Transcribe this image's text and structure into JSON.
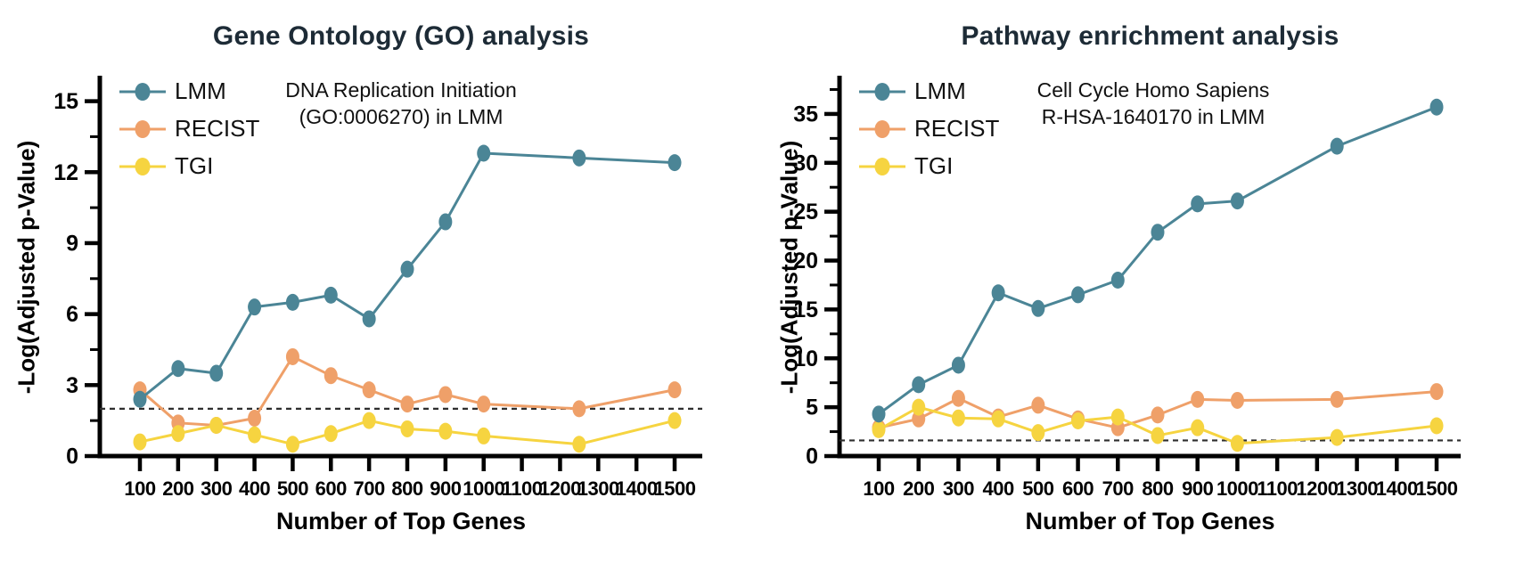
{
  "chart_data": [
    {
      "type": "line",
      "title": "Gene Ontology (GO) analysis",
      "annotation": {
        "line1": "DNA Replication Initiation",
        "line2": "(GO:0006270) in LMM"
      },
      "xlabel": "Number of Top Genes",
      "ylabel": "-Log(Adjusted p-Value)",
      "x": [
        100,
        200,
        300,
        400,
        500,
        600,
        700,
        800,
        900,
        1000,
        1250,
        1500
      ],
      "xticks": [
        100,
        200,
        300,
        400,
        500,
        600,
        700,
        800,
        900,
        1000,
        1100,
        1200,
        1300,
        1400,
        1500
      ],
      "yticks": [
        0,
        3,
        6,
        9,
        12,
        15
      ],
      "ylim": [
        0,
        15.7
      ],
      "threshold": 2.0,
      "legend_position": "top-left",
      "grid": false,
      "series": [
        {
          "name": "LMM",
          "color": "#4B8596",
          "values": [
            2.4,
            3.7,
            3.5,
            6.3,
            6.5,
            6.8,
            5.8,
            7.9,
            9.9,
            12.8,
            12.6,
            12.4
          ]
        },
        {
          "name": "RECIST",
          "color": "#EFA069",
          "values": [
            2.8,
            1.4,
            1.3,
            1.6,
            4.2,
            3.4,
            2.8,
            2.2,
            2.6,
            2.2,
            2.0,
            2.8
          ]
        },
        {
          "name": "TGI",
          "color": "#F6D440",
          "values": [
            0.6,
            0.95,
            1.3,
            0.9,
            0.5,
            0.95,
            1.5,
            1.15,
            1.05,
            0.85,
            0.5,
            1.5
          ]
        }
      ]
    },
    {
      "type": "line",
      "title": "Pathway enrichment analysis",
      "annotation": {
        "line1": "Cell Cycle Homo Sapiens",
        "line2": "R-HSA-1640170 in LMM"
      },
      "xlabel": "Number of Top Genes",
      "ylabel": "-Log(Adjusted p-Value)",
      "x": [
        100,
        200,
        300,
        400,
        500,
        600,
        700,
        800,
        900,
        1000,
        1250,
        1500
      ],
      "xticks": [
        100,
        200,
        300,
        400,
        500,
        600,
        700,
        800,
        900,
        1000,
        1100,
        1200,
        1300,
        1400,
        1500
      ],
      "yticks": [
        0,
        5,
        10,
        15,
        20,
        25,
        30,
        35
      ],
      "ylim": [
        0,
        38
      ],
      "threshold": 1.6,
      "legend_position": "top-left",
      "grid": false,
      "series": [
        {
          "name": "LMM",
          "color": "#4B8596",
          "values": [
            4.3,
            7.3,
            9.3,
            16.7,
            15.1,
            16.5,
            18.0,
            22.9,
            25.8,
            26.1,
            31.7,
            35.7
          ]
        },
        {
          "name": "RECIST",
          "color": "#EFA069",
          "values": [
            2.9,
            3.8,
            5.9,
            4.0,
            5.2,
            3.8,
            2.9,
            4.2,
            5.8,
            5.7,
            5.8,
            6.6
          ]
        },
        {
          "name": "TGI",
          "color": "#F6D440",
          "values": [
            2.7,
            5.0,
            3.9,
            3.8,
            2.4,
            3.6,
            4.0,
            2.1,
            2.9,
            1.3,
            1.9,
            3.1
          ]
        }
      ]
    }
  ],
  "style": {
    "axis_color": "#000000",
    "threshold_color": "#2e2e2e",
    "title_color": "#1d2b36",
    "background": "#ffffff"
  }
}
